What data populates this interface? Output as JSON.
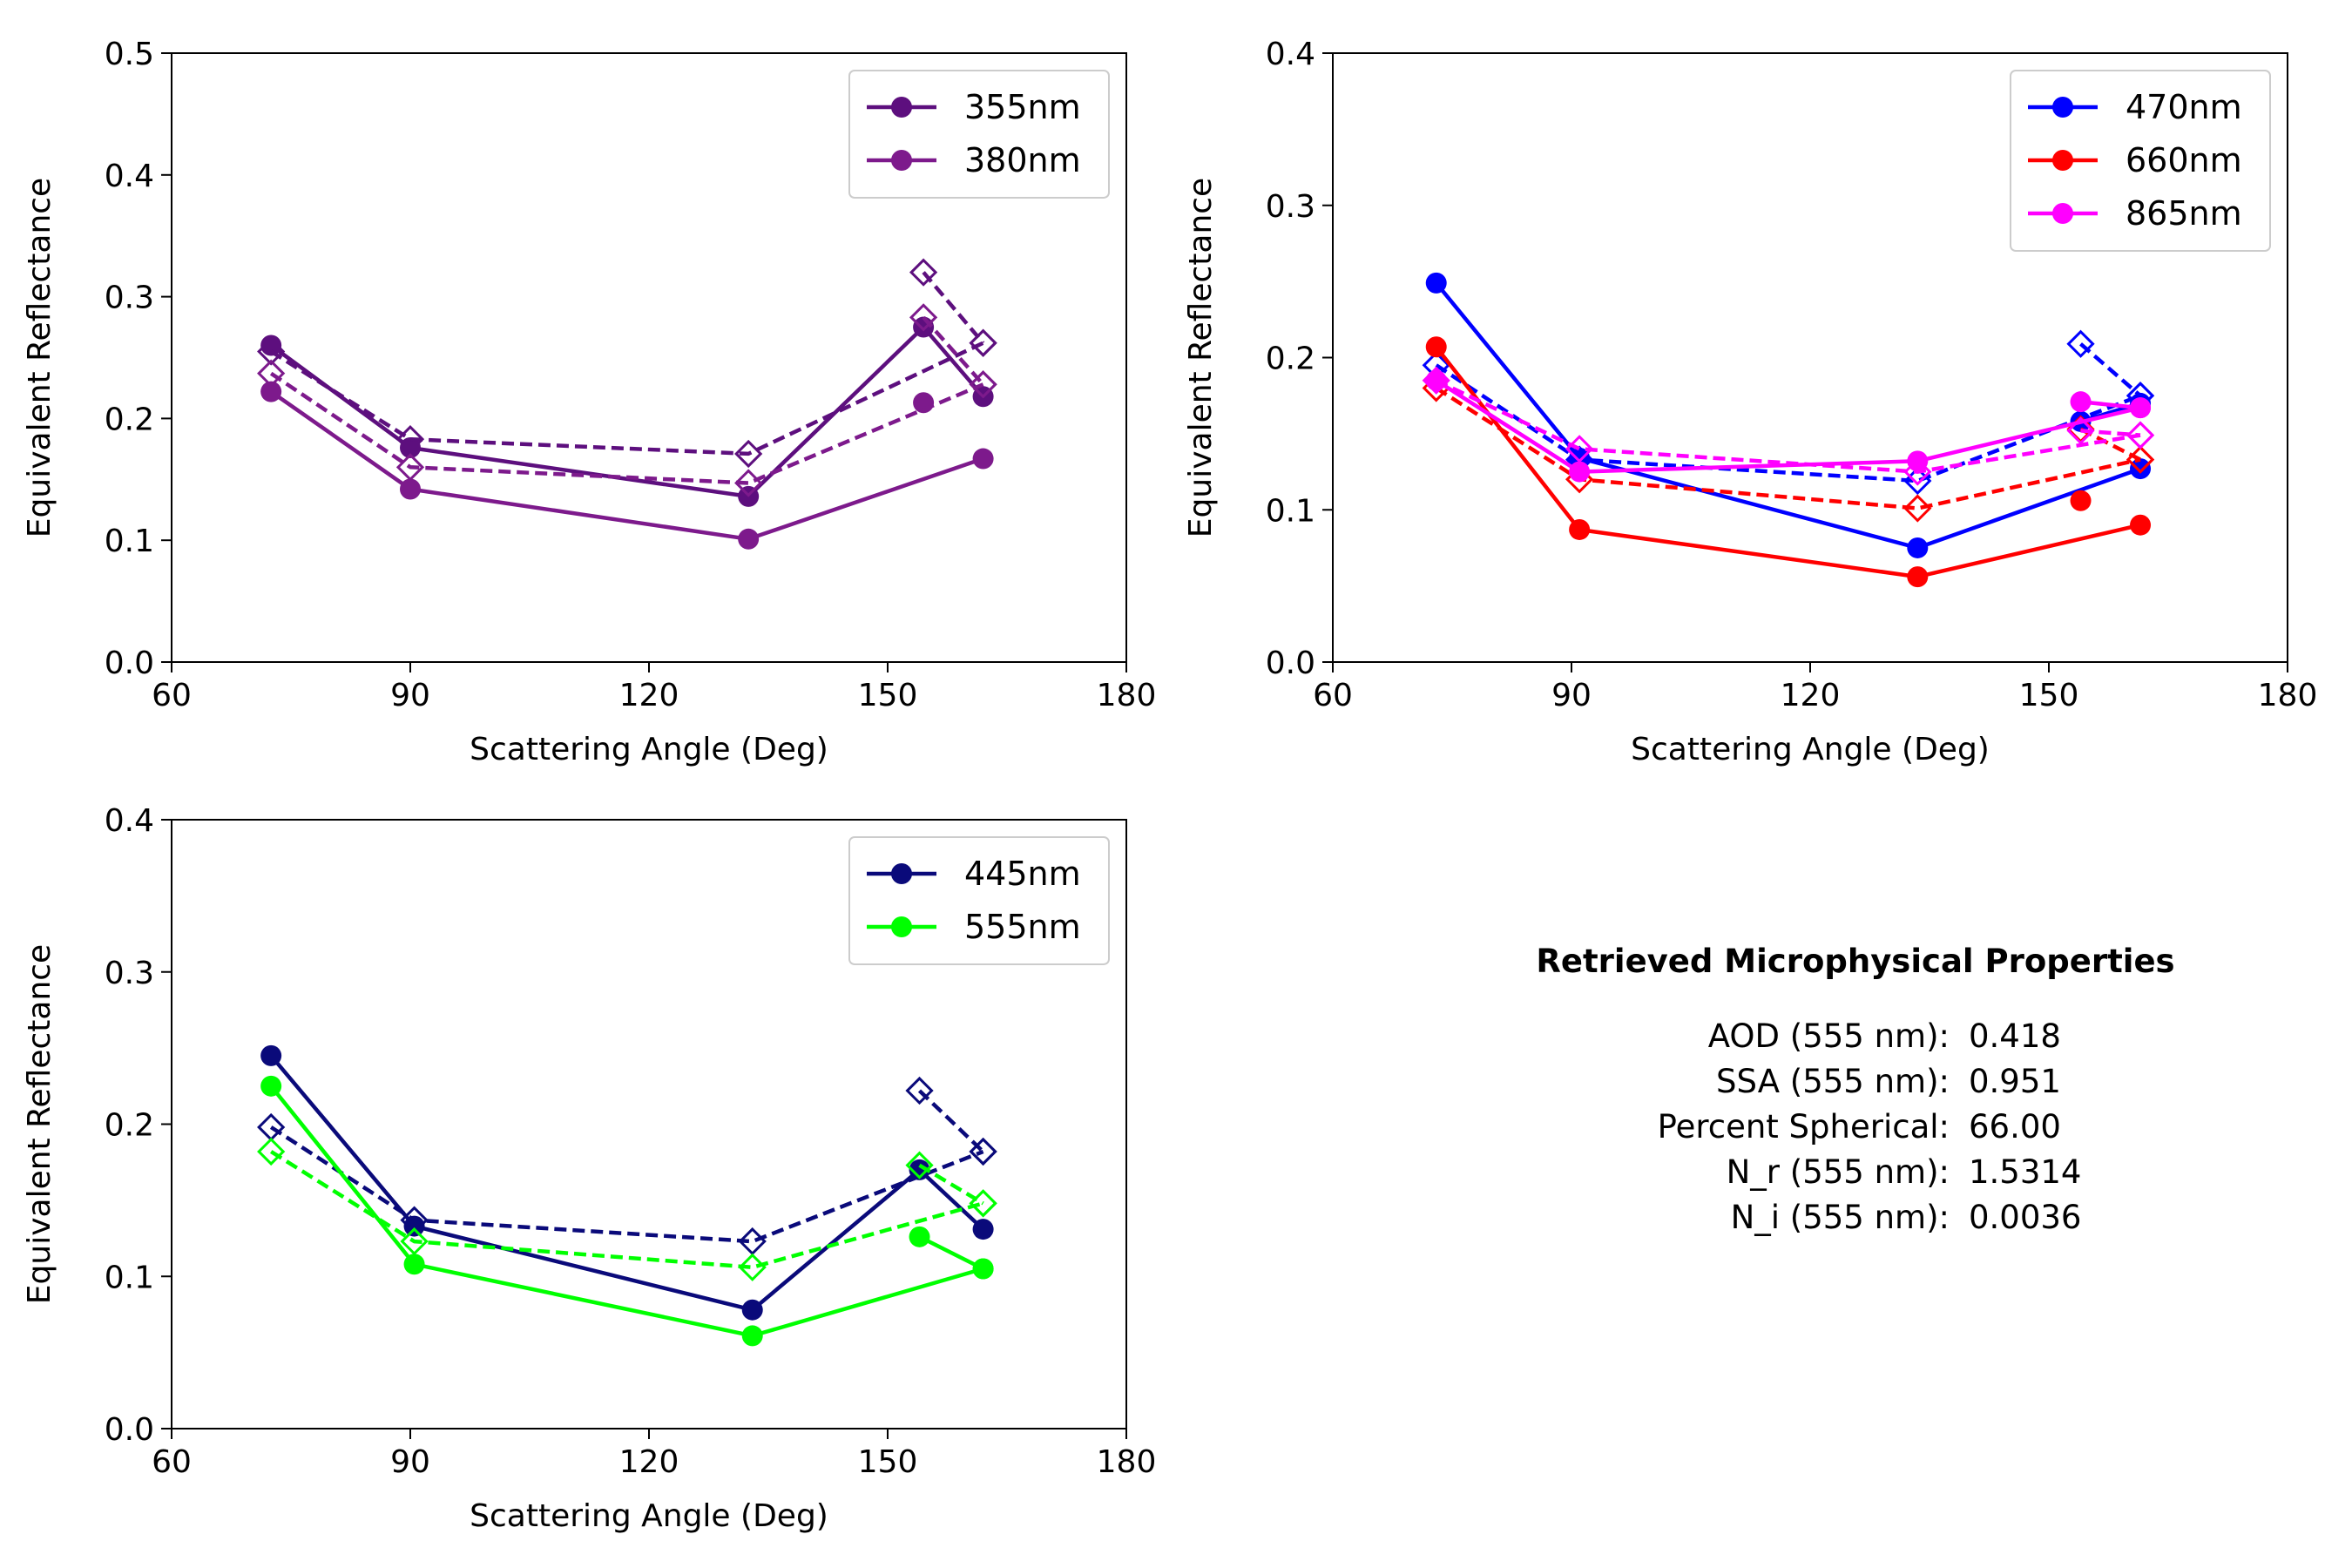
{
  "chart_data": [
    {
      "type": "line",
      "xlabel": "Scattering Angle (Deg)",
      "ylabel": "Equivalent Reflectance",
      "xlim": [
        60,
        180
      ],
      "ylim": [
        0,
        0.5
      ],
      "xticks": [
        60,
        90,
        120,
        150,
        180
      ],
      "xtick_labels": [
        "60",
        "90",
        "120",
        "150",
        "180"
      ],
      "yticks": [
        0,
        0.1,
        0.2,
        0.3,
        0.4,
        0.5
      ],
      "ytick_labels": [
        "0.0",
        "0.1",
        "0.2",
        "0.3",
        "0.4",
        "0.5"
      ],
      "legend_position": "top-right",
      "series": [
        {
          "name": "355nm",
          "color": "#5d0f7e",
          "style": "solid",
          "marker": "circle",
          "segments": [
            [
              [
                72.5,
                0.26
              ],
              [
                90.0,
                0.176
              ],
              [
                132.5,
                0.136
              ],
              [
                154.5,
                0.275
              ],
              [
                162.0,
                0.218
              ]
            ]
          ]
        },
        {
          "name": "",
          "color": "#5d0f7e",
          "style": "dashed",
          "marker": "diamond",
          "segments": [
            [
              [
                72.5,
                0.255
              ],
              [
                90.0,
                0.183
              ],
              [
                132.5,
                0.171
              ],
              [
                162.0,
                0.262
              ]
            ],
            [
              [
                154.5,
                0.32
              ],
              [
                162.0,
                0.262
              ]
            ]
          ]
        },
        {
          "name": "380nm",
          "color": "#7d1a8c",
          "style": "solid",
          "marker": "circle",
          "segments": [
            [
              [
                72.5,
                0.222
              ],
              [
                90.0,
                0.142
              ],
              [
                132.5,
                0.101
              ],
              [
                162.0,
                0.167
              ]
            ],
            [
              [
                154.5,
                0.213
              ]
            ]
          ]
        },
        {
          "name": "",
          "color": "#7d1a8c",
          "style": "dashed",
          "marker": "diamond",
          "segments": [
            [
              [
                72.5,
                0.237
              ],
              [
                90.0,
                0.16
              ],
              [
                132.5,
                0.147
              ],
              [
                162.0,
                0.228
              ]
            ],
            [
              [
                154.5,
                0.283
              ],
              [
                162.0,
                0.228
              ]
            ]
          ]
        }
      ]
    },
    {
      "type": "line",
      "xlabel": "Scattering Angle (Deg)",
      "ylabel": "Equivalent Reflectance",
      "xlim": [
        60,
        180
      ],
      "ylim": [
        0,
        0.4
      ],
      "xticks": [
        60,
        90,
        120,
        150,
        180
      ],
      "xtick_labels": [
        "60",
        "90",
        "120",
        "150",
        "180"
      ],
      "yticks": [
        0,
        0.1,
        0.2,
        0.3,
        0.4
      ],
      "ytick_labels": [
        "0.0",
        "0.1",
        "0.2",
        "0.3",
        "0.4"
      ],
      "legend_position": "top-right",
      "series": [
        {
          "name": "470nm",
          "color": "#0000ff",
          "style": "solid",
          "marker": "circle",
          "segments": [
            [
              [
                73.0,
                0.249
              ],
              [
                91.0,
                0.134
              ],
              [
                133.5,
                0.075
              ],
              [
                161.5,
                0.127
              ]
            ],
            [
              [
                154.0,
                0.158
              ],
              [
                161.5,
                0.17
              ]
            ]
          ]
        },
        {
          "name": "",
          "color": "#0000ff",
          "style": "dashed",
          "marker": "diamond",
          "segments": [
            [
              [
                73.0,
                0.195
              ],
              [
                91.0,
                0.133
              ],
              [
                133.5,
                0.119
              ],
              [
                161.5,
                0.175
              ]
            ],
            [
              [
                154.0,
                0.209
              ],
              [
                161.5,
                0.175
              ]
            ]
          ]
        },
        {
          "name": "660nm",
          "color": "#ff0000",
          "style": "solid",
          "marker": "circle",
          "segments": [
            [
              [
                73.0,
                0.207
              ],
              [
                91.0,
                0.087
              ],
              [
                133.5,
                0.056
              ],
              [
                161.5,
                0.09
              ]
            ],
            [
              [
                154.0,
                0.106
              ]
            ]
          ]
        },
        {
          "name": "",
          "color": "#ff0000",
          "style": "dashed",
          "marker": "diamond",
          "segments": [
            [
              [
                73.0,
                0.18
              ],
              [
                91.0,
                0.12
              ],
              [
                133.5,
                0.101
              ],
              [
                161.5,
                0.133
              ]
            ],
            [
              [
                154.0,
                0.153
              ],
              [
                161.5,
                0.133
              ]
            ]
          ]
        },
        {
          "name": "865nm",
          "color": "#ff00ff",
          "style": "solid",
          "marker": "circle",
          "segments": [
            [
              [
                73.0,
                0.185
              ],
              [
                91.0,
                0.125
              ],
              [
                133.5,
                0.132
              ],
              [
                161.5,
                0.167
              ]
            ],
            [
              [
                154.0,
                0.171
              ],
              [
                161.5,
                0.167
              ]
            ]
          ]
        },
        {
          "name": "",
          "color": "#ff00ff",
          "style": "dashed",
          "marker": "diamond",
          "segments": [
            [
              [
                73.0,
                0.185
              ],
              [
                91.0,
                0.14
              ],
              [
                133.5,
                0.125
              ],
              [
                161.5,
                0.149
              ]
            ],
            [
              [
                154.0,
                0.152
              ],
              [
                161.5,
                0.149
              ]
            ]
          ]
        }
      ]
    },
    {
      "type": "line",
      "xlabel": "Scattering Angle (Deg)",
      "ylabel": "Equivalent Reflectance",
      "xlim": [
        60,
        180
      ],
      "ylim": [
        0,
        0.4
      ],
      "xticks": [
        60,
        90,
        120,
        150,
        180
      ],
      "xtick_labels": [
        "60",
        "90",
        "120",
        "150",
        "180"
      ],
      "yticks": [
        0,
        0.1,
        0.2,
        0.3,
        0.4
      ],
      "ytick_labels": [
        "0.0",
        "0.1",
        "0.2",
        "0.3",
        "0.4"
      ],
      "legend_position": "top-right",
      "series": [
        {
          "name": "445nm",
          "color": "#0a0a7a",
          "style": "solid",
          "marker": "circle",
          "segments": [
            [
              [
                72.5,
                0.245
              ],
              [
                90.5,
                0.133
              ],
              [
                133.0,
                0.078
              ],
              [
                154.0,
                0.17
              ],
              [
                162.0,
                0.131
              ]
            ]
          ]
        },
        {
          "name": "",
          "color": "#0a0a7a",
          "style": "dashed",
          "marker": "diamond",
          "segments": [
            [
              [
                72.5,
                0.198
              ],
              [
                90.5,
                0.137
              ],
              [
                133.0,
                0.123
              ],
              [
                162.0,
                0.182
              ]
            ],
            [
              [
                154.0,
                0.222
              ],
              [
                162.0,
                0.182
              ]
            ]
          ]
        },
        {
          "name": "555nm",
          "color": "#00ff00",
          "style": "solid",
          "marker": "circle",
          "segments": [
            [
              [
                72.5,
                0.225
              ],
              [
                90.5,
                0.108
              ],
              [
                133.0,
                0.061
              ],
              [
                162.0,
                0.105
              ]
            ],
            [
              [
                154.0,
                0.126
              ],
              [
                162.0,
                0.105
              ]
            ]
          ]
        },
        {
          "name": "",
          "color": "#00ff00",
          "style": "dashed",
          "marker": "diamond",
          "segments": [
            [
              [
                72.5,
                0.182
              ],
              [
                90.5,
                0.123
              ],
              [
                133.0,
                0.106
              ],
              [
                162.0,
                0.148
              ]
            ],
            [
              [
                154.0,
                0.173
              ],
              [
                162.0,
                0.148
              ]
            ]
          ]
        }
      ]
    }
  ],
  "properties": {
    "title": "Retrieved Microphysical Properties",
    "rows": [
      {
        "label": "AOD (555 nm):",
        "value": "0.418"
      },
      {
        "label": "SSA (555 nm):",
        "value": "0.951"
      },
      {
        "label": "Percent Spherical:",
        "value": "66.00"
      },
      {
        "label": "N_r (555 nm):",
        "value": "1.5314"
      },
      {
        "label": "N_i (555 nm):",
        "value": "0.0036"
      }
    ]
  }
}
